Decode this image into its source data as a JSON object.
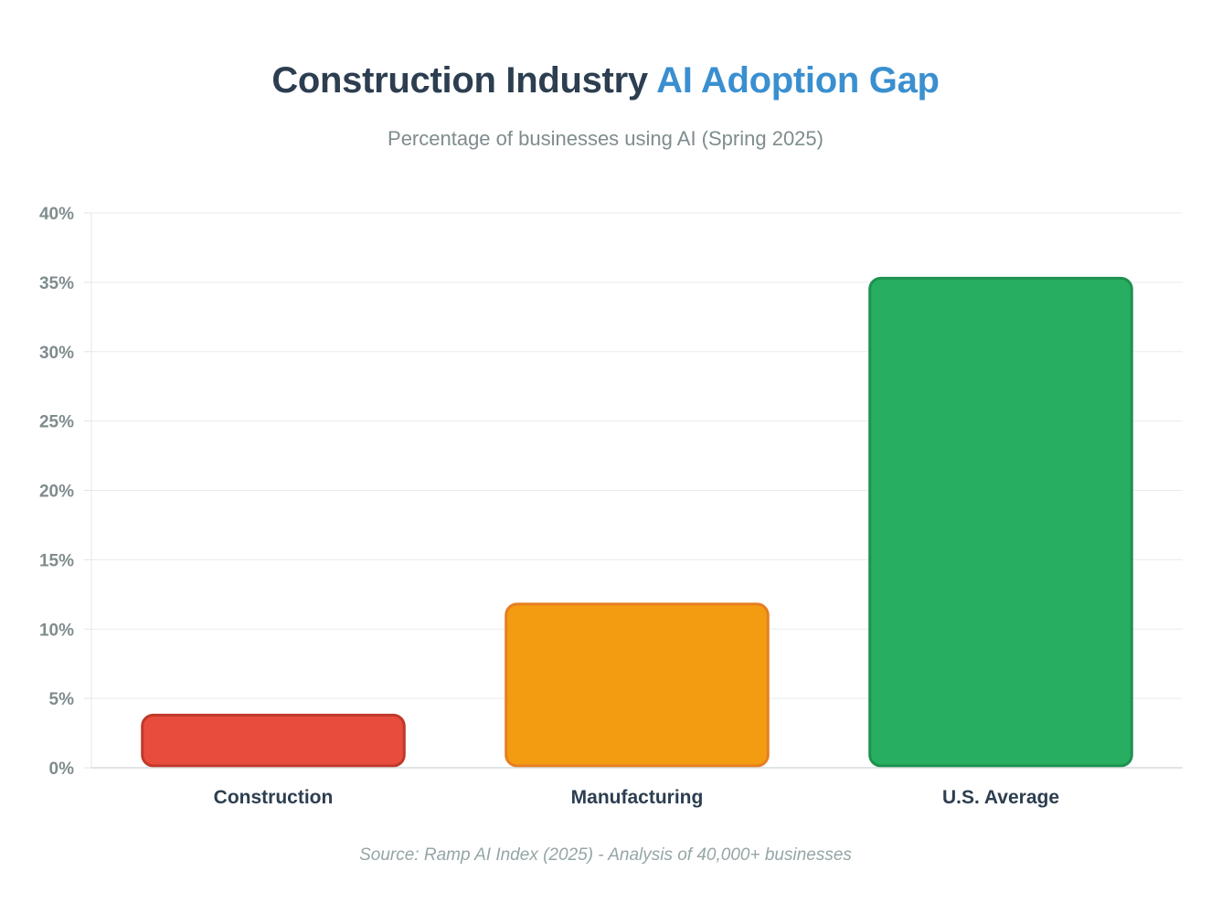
{
  "chart_data": {
    "type": "bar",
    "title": {
      "main": "Construction Industry",
      "accent": "AI Adoption Gap"
    },
    "subtitle": "Percentage of businesses using AI (Spring 2025)",
    "source": "Source: Ramp AI Index (2025) - Analysis of 40,000+ businesses",
    "categories": [
      "Construction",
      "Manufacturing",
      "U.S. Average"
    ],
    "values": [
      3.8,
      11.8,
      35.3
    ],
    "colors": [
      {
        "fill": "#e74c3c",
        "stroke": "#c0392b"
      },
      {
        "fill": "#f39c12",
        "stroke": "#e67e22"
      },
      {
        "fill": "#27ae60",
        "stroke": "#1e9150"
      }
    ],
    "ylim": [
      0,
      40
    ],
    "yticks": [
      0,
      5,
      10,
      15,
      20,
      25,
      30,
      35,
      40
    ],
    "ytick_labels": [
      "0%",
      "5%",
      "10%",
      "15%",
      "20%",
      "25%",
      "30%",
      "35%",
      "40%"
    ],
    "xlabel": "",
    "ylabel": "",
    "grid": true,
    "legend": "none"
  }
}
